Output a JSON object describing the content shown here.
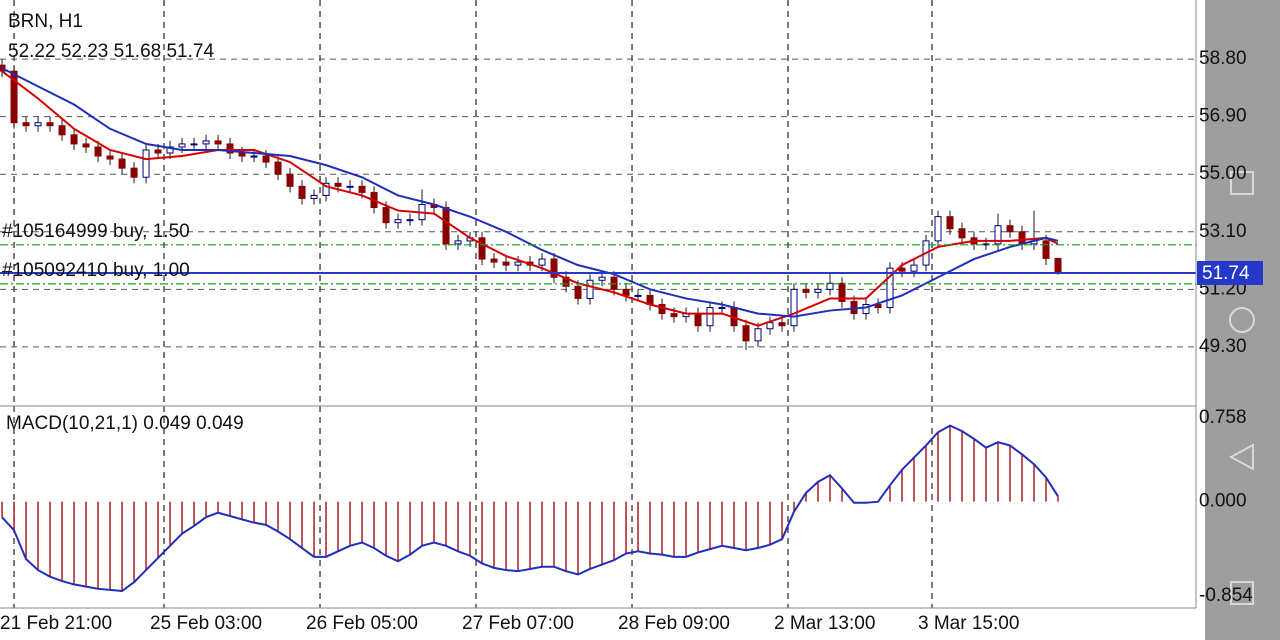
{
  "chart_data": [
    {
      "type": "candlestick",
      "title": "BRN, H1",
      "open": [
        58.6,
        58.4,
        56.7,
        56.6,
        56.7,
        56.6,
        56.3,
        56.0,
        55.9,
        55.6,
        55.5,
        55.2,
        54.9,
        55.8,
        55.7,
        55.9,
        56.0,
        56.0,
        56.1,
        56.0,
        55.7,
        55.6,
        55.6,
        55.4,
        55.0,
        54.6,
        54.2,
        54.3,
        54.7,
        54.6,
        54.6,
        54.4,
        53.9,
        53.4,
        53.5,
        53.5,
        54.0,
        53.9,
        52.7,
        52.8,
        52.9,
        52.2,
        52.1,
        52.0,
        52.1,
        52.0,
        52.2,
        51.6,
        51.3,
        50.9,
        51.5,
        51.6,
        51.2,
        51.0,
        51.0,
        50.7,
        50.4,
        50.3,
        50.4,
        50.0,
        50.6,
        50.6,
        50.0,
        49.5,
        49.9,
        50.1,
        50.0,
        51.2,
        51.1,
        51.2,
        51.4,
        50.8,
        50.4,
        50.7,
        50.6,
        51.9,
        51.8,
        52.0,
        52.8,
        53.6,
        53.2,
        52.9,
        52.7,
        52.7,
        53.3,
        53.1,
        52.7,
        52.8,
        52.22
      ],
      "high": [
        58.8,
        58.6,
        56.9,
        56.9,
        56.9,
        56.8,
        56.5,
        56.2,
        56.1,
        55.8,
        55.7,
        55.4,
        56.0,
        56.0,
        56.1,
        56.2,
        56.2,
        56.3,
        56.3,
        56.2,
        55.9,
        55.8,
        55.8,
        55.6,
        55.2,
        54.8,
        54.5,
        54.9,
        54.9,
        54.8,
        54.8,
        54.6,
        54.1,
        53.7,
        53.7,
        54.5,
        54.2,
        54.1,
        53.0,
        53.1,
        53.1,
        52.4,
        52.3,
        52.3,
        52.3,
        52.4,
        52.4,
        51.8,
        51.5,
        51.7,
        51.8,
        51.8,
        51.4,
        51.2,
        51.2,
        50.9,
        50.6,
        50.6,
        50.6,
        50.8,
        50.8,
        50.8,
        50.2,
        50.1,
        50.3,
        50.3,
        51.4,
        51.4,
        51.4,
        51.7,
        51.6,
        51.0,
        50.9,
        50.9,
        52.1,
        52.1,
        52.2,
        53.0,
        53.8,
        53.8,
        53.4,
        53.1,
        52.9,
        53.7,
        53.5,
        53.3,
        53.8,
        53.0,
        52.23
      ],
      "low": [
        58.2,
        56.5,
        56.4,
        56.4,
        56.4,
        56.1,
        55.8,
        55.7,
        55.4,
        55.3,
        55.0,
        54.7,
        54.7,
        55.5,
        55.5,
        55.7,
        55.8,
        55.8,
        55.8,
        55.5,
        55.4,
        55.4,
        55.2,
        54.8,
        54.4,
        54.0,
        54.0,
        54.1,
        54.4,
        54.4,
        54.2,
        53.7,
        53.2,
        53.2,
        53.3,
        53.3,
        53.7,
        52.5,
        52.5,
        52.6,
        52.0,
        51.9,
        51.8,
        51.8,
        51.8,
        51.8,
        51.4,
        51.1,
        50.7,
        50.7,
        51.3,
        51.0,
        50.8,
        50.8,
        50.5,
        50.2,
        50.1,
        50.1,
        49.8,
        49.8,
        50.4,
        49.8,
        49.2,
        49.3,
        49.7,
        49.8,
        49.8,
        50.9,
        50.9,
        51.0,
        50.6,
        50.2,
        50.2,
        50.4,
        50.4,
        51.6,
        51.6,
        51.8,
        52.6,
        53.0,
        52.7,
        52.5,
        52.5,
        52.5,
        52.9,
        52.5,
        52.5,
        52.0,
        51.68
      ],
      "close": [
        58.4,
        56.7,
        56.6,
        56.7,
        56.6,
        56.3,
        56.0,
        55.9,
        55.6,
        55.5,
        55.2,
        54.9,
        55.8,
        55.7,
        55.9,
        56.0,
        56.0,
        56.1,
        56.0,
        55.7,
        55.6,
        55.6,
        55.4,
        55.0,
        54.6,
        54.2,
        54.3,
        54.7,
        54.6,
        54.6,
        54.4,
        53.9,
        53.4,
        53.5,
        53.5,
        54.0,
        53.9,
        52.7,
        52.8,
        52.9,
        52.2,
        52.1,
        52.0,
        52.1,
        52.0,
        52.2,
        51.6,
        51.3,
        50.9,
        51.5,
        51.6,
        51.2,
        51.0,
        51.0,
        50.7,
        50.4,
        50.3,
        50.4,
        50.0,
        50.6,
        50.6,
        50.0,
        49.5,
        49.9,
        50.1,
        50.0,
        51.2,
        51.1,
        51.2,
        51.4,
        50.8,
        50.4,
        50.7,
        50.6,
        51.9,
        51.8,
        52.0,
        52.8,
        53.6,
        53.2,
        52.9,
        52.7,
        52.7,
        53.3,
        53.1,
        52.7,
        52.8,
        52.22,
        51.74
      ],
      "up_color": "#ffffff",
      "up_stroke": "#00007f",
      "down_color": "#8b0000",
      "wick_color": "#1a1a1a",
      "series": [
        {
          "color": "#d40000",
          "x": [
            0,
            3,
            6,
            9,
            12,
            15,
            18,
            21,
            24,
            27,
            30,
            33,
            36,
            39,
            42,
            45,
            48,
            51,
            54,
            57,
            60,
            63,
            66,
            69,
            72,
            75,
            78,
            81,
            84,
            87,
            88
          ],
          "values": [
            58.4,
            57.5,
            56.5,
            55.8,
            55.5,
            55.6,
            55.8,
            55.8,
            55.4,
            54.6,
            54.3,
            53.8,
            53.7,
            52.9,
            52.3,
            51.9,
            51.4,
            51.1,
            50.7,
            50.4,
            50.4,
            50.0,
            50.4,
            50.9,
            50.9,
            52.0,
            52.6,
            52.8,
            52.8,
            52.9,
            52.7
          ]
        },
        {
          "color": "#1f2fb8",
          "x": [
            0,
            3,
            6,
            9,
            12,
            15,
            18,
            21,
            24,
            27,
            30,
            33,
            36,
            39,
            42,
            45,
            48,
            51,
            54,
            57,
            60,
            63,
            66,
            69,
            72,
            75,
            78,
            81,
            84,
            87,
            88
          ],
          "values": [
            58.5,
            57.9,
            57.3,
            56.5,
            56.0,
            55.8,
            55.8,
            55.7,
            55.6,
            55.3,
            54.9,
            54.3,
            54.0,
            53.6,
            53.1,
            52.5,
            52.0,
            51.7,
            51.2,
            50.9,
            50.7,
            50.4,
            50.3,
            50.5,
            50.6,
            51.0,
            51.6,
            52.2,
            52.6,
            52.9,
            52.8
          ]
        }
      ],
      "orders": [
        {
          "label": "#105164999 buy, 1.50",
          "price": 52.67,
          "color": "#1a9a1a"
        },
        {
          "label": "#105092410 buy, 1.00",
          "price": 51.38,
          "color": "#1a9a1a"
        }
      ],
      "price_line_color": "#2638c8",
      "xlim": [
        -0.17,
        99.5
      ],
      "xticks": [
        {
          "value": 1,
          "label": "21 Feb 21:00"
        },
        {
          "value": 13.5,
          "label": "25 Feb 03:00"
        },
        {
          "value": 26.5,
          "label": "26 Feb 05:00"
        },
        {
          "value": 39.5,
          "label": "27 Feb 07:00"
        },
        {
          "value": 52.5,
          "label": "28 Feb 09:00"
        },
        {
          "value": 65.5,
          "label": "2 Mar 13:00"
        },
        {
          "value": 77.5,
          "label": "3 Mar 15:00"
        }
      ],
      "ylim": [
        47.35,
        60.75
      ],
      "yticks": [
        {
          "value": 58.8,
          "label": "58.80"
        },
        {
          "value": 56.9,
          "label": "56.90"
        },
        {
          "value": 55,
          "label": "55.00"
        },
        {
          "value": 53.1,
          "label": "53.10"
        },
        {
          "value": 51.2,
          "label": "51.20"
        },
        {
          "value": 49.3,
          "label": "49.30"
        }
      ],
      "grid": true
    },
    {
      "type": "macd",
      "title": "MACD(10,21,1)",
      "values": [
        -0.14,
        -0.26,
        -0.52,
        -0.62,
        -0.68,
        -0.72,
        -0.75,
        -0.77,
        -0.79,
        -0.8,
        -0.81,
        -0.73,
        -0.62,
        -0.51,
        -0.4,
        -0.29,
        -0.22,
        -0.14,
        -0.1,
        -0.13,
        -0.16,
        -0.19,
        -0.21,
        -0.27,
        -0.34,
        -0.42,
        -0.5,
        -0.5,
        -0.45,
        -0.4,
        -0.37,
        -0.42,
        -0.49,
        -0.54,
        -0.48,
        -0.4,
        -0.37,
        -0.4,
        -0.45,
        -0.49,
        -0.56,
        -0.6,
        -0.62,
        -0.63,
        -0.61,
        -0.59,
        -0.59,
        -0.63,
        -0.66,
        -0.61,
        -0.57,
        -0.53,
        -0.47,
        -0.45,
        -0.47,
        -0.48,
        -0.5,
        -0.5,
        -0.46,
        -0.43,
        -0.4,
        -0.42,
        -0.44,
        -0.42,
        -0.39,
        -0.34,
        -0.09,
        0.08,
        0.18,
        0.24,
        0.12,
        -0.01,
        -0.01,
        0,
        0.15,
        0.29,
        0.4,
        0.51,
        0.63,
        0.69,
        0.64,
        0.57,
        0.49,
        0.54,
        0.51,
        0.43,
        0.34,
        0.22,
        0.049
      ],
      "signal": 0.049,
      "color": "#a01010",
      "signal_color": "#1f2fb8",
      "ylim": [
        -0.964,
        0.868
      ],
      "yticks": [
        0.758,
        {
          "value": 0,
          "label": "0.000"
        },
        -0.854
      ]
    }
  ]
}
